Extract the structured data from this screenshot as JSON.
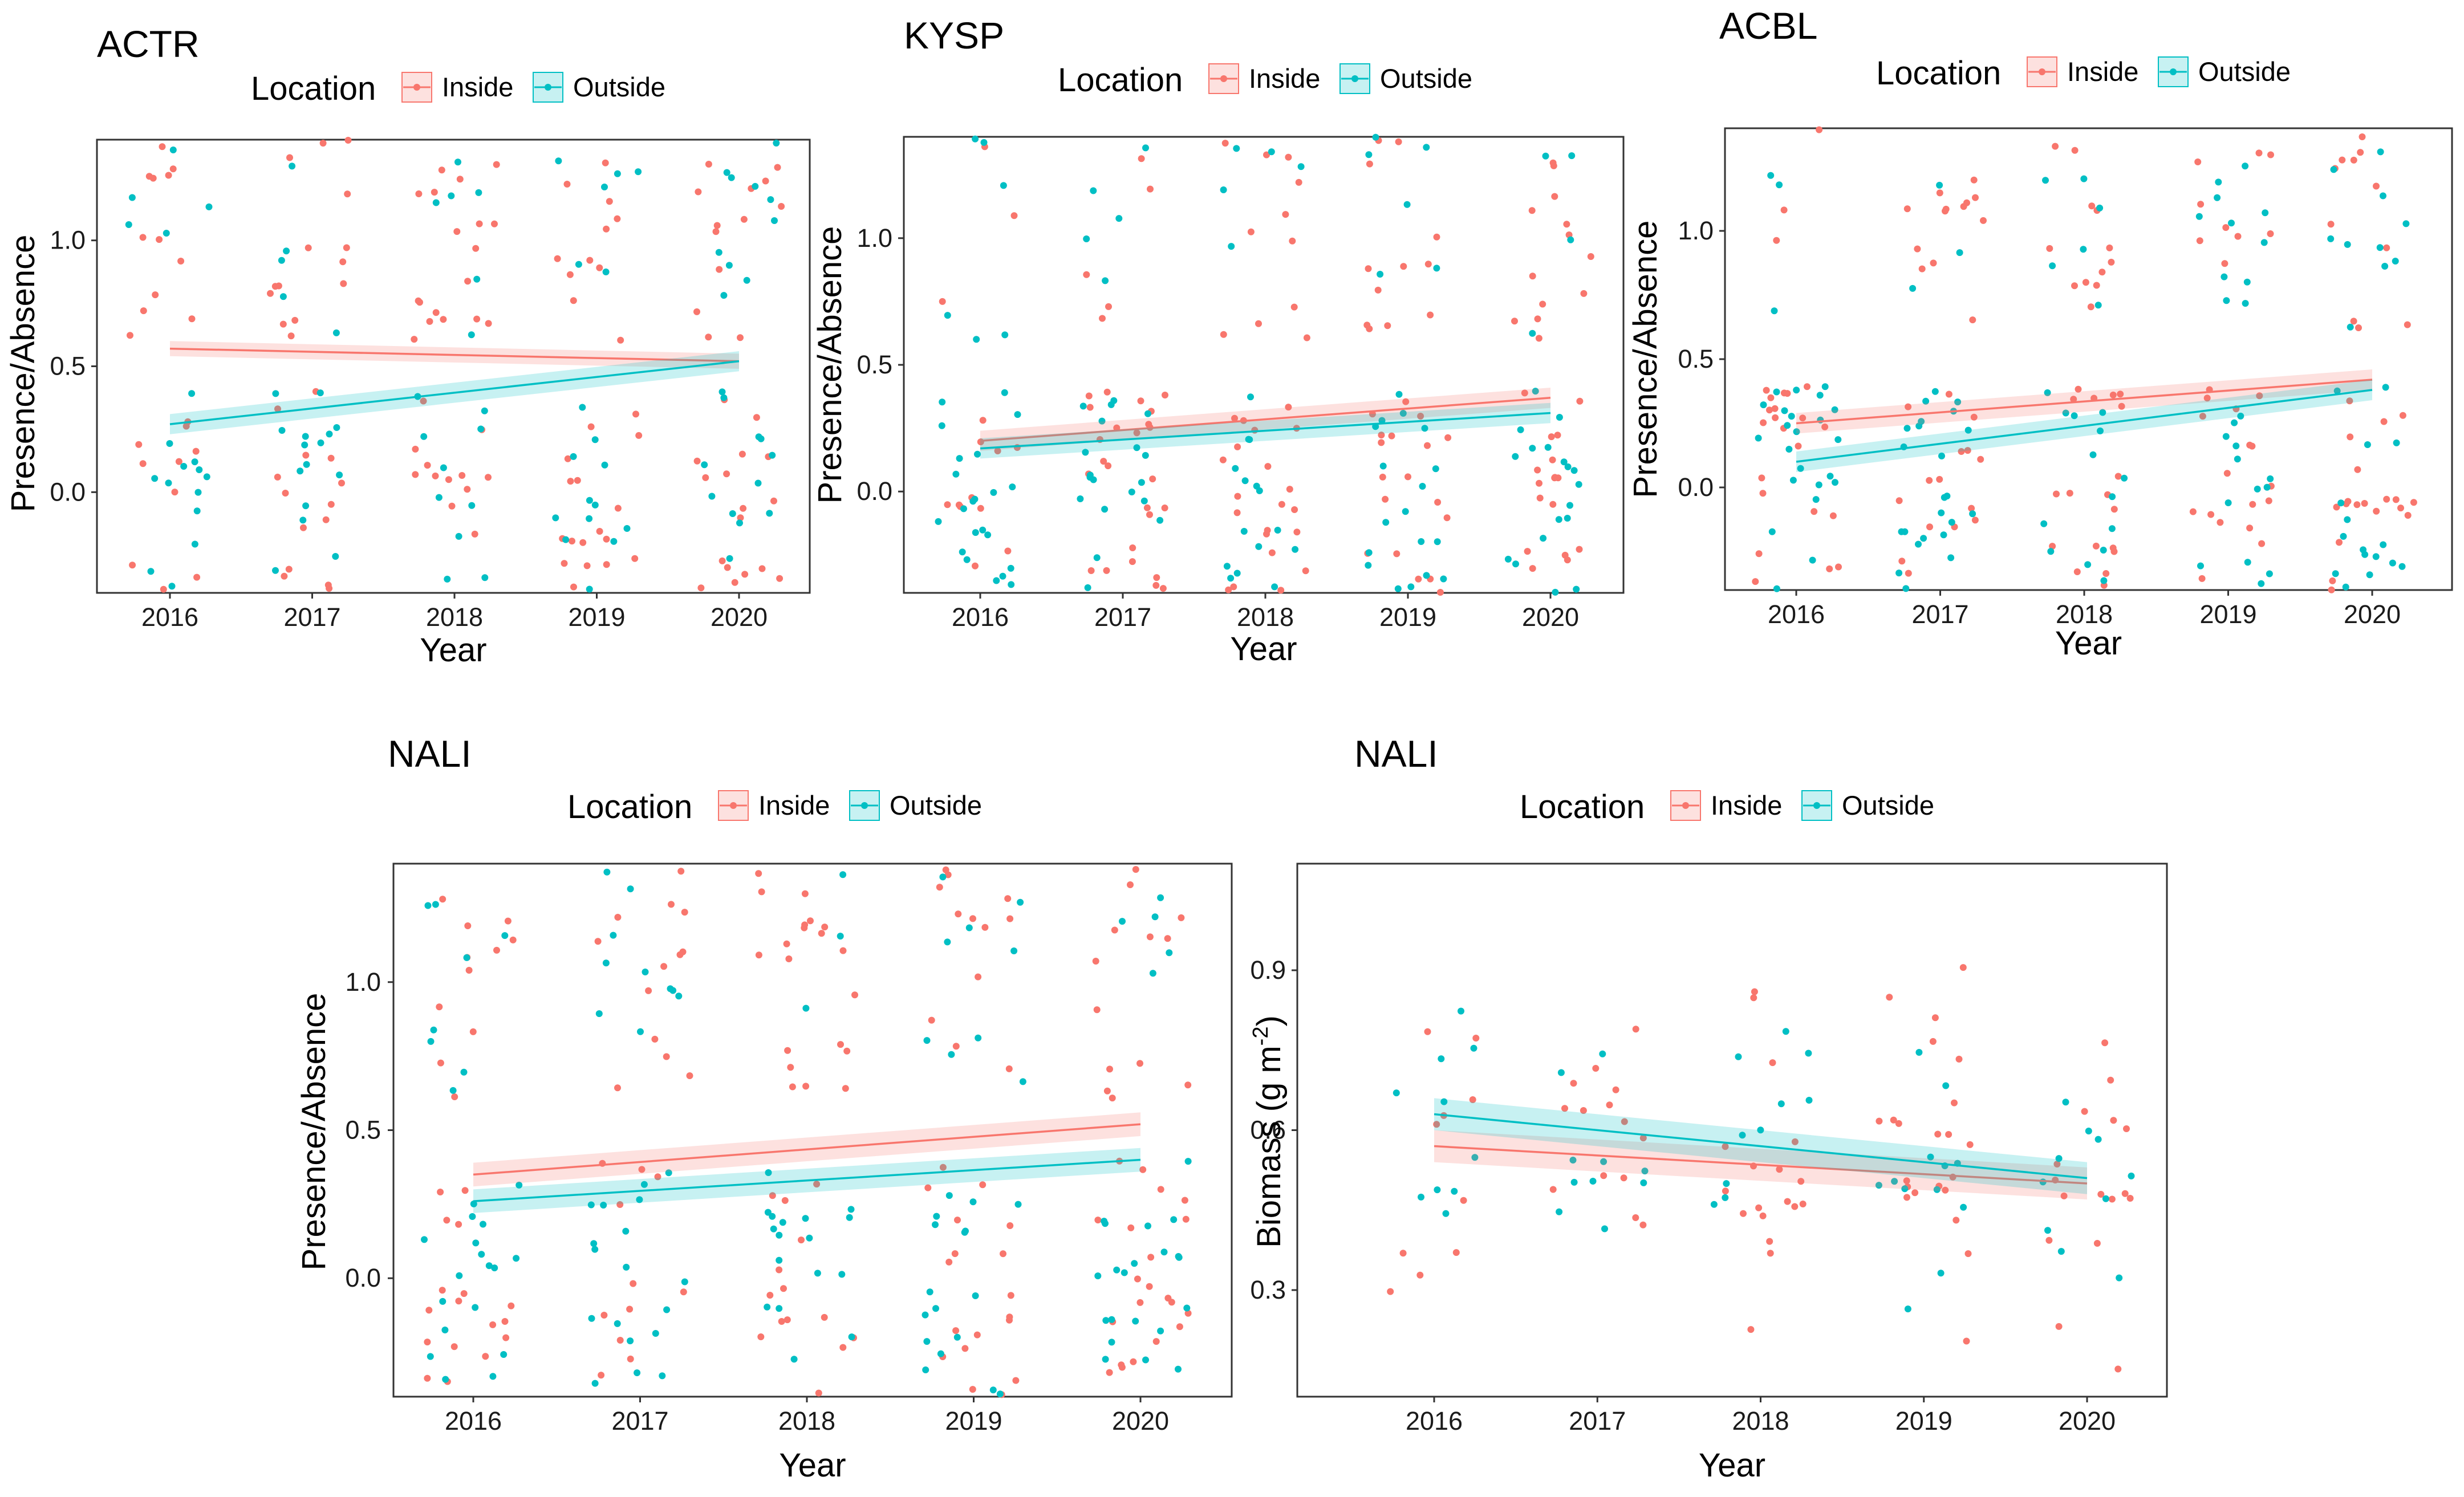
{
  "colors": {
    "inside": "#F8766D",
    "outside": "#00BFC4"
  },
  "legend": {
    "title": "Location",
    "items": [
      "Inside",
      "Outside"
    ]
  },
  "chart_data": [
    {
      "type": "scatter",
      "title": "ACTR",
      "xlabel": "Year",
      "ylabel": "Presence/Absence",
      "ylim": [
        -0.4,
        1.4
      ],
      "yticks": [
        0.0,
        0.5,
        1.0
      ],
      "ytick_labels": [
        "0.0",
        "0.5",
        "1.0"
      ],
      "x": [
        2016,
        2017,
        2018,
        2019,
        2020
      ],
      "xtick_labels": [
        "2016",
        "2017",
        "2018",
        "2019",
        "2020"
      ],
      "jitter": {
        "x": 0.3,
        "y": 0.4
      },
      "points_per_year": {
        "Inside": [
          22,
          28,
          30,
          28,
          30
        ],
        "Outside": [
          18,
          20,
          16,
          18,
          22
        ]
      },
      "series": [
        {
          "name": "Inside",
          "start": 0.57,
          "end": 0.52,
          "ci": 0.03
        },
        {
          "name": "Outside",
          "start": 0.27,
          "end": 0.52,
          "ci": 0.04
        }
      ]
    },
    {
      "type": "scatter",
      "title": "KYSP",
      "xlabel": "Year",
      "ylabel": "Presence/Absence",
      "ylim": [
        -0.4,
        1.4
      ],
      "yticks": [
        0.0,
        0.5,
        1.0
      ],
      "ytick_labels": [
        "0.0",
        "0.5",
        "1.0"
      ],
      "x": [
        2016,
        2017,
        2018,
        2019,
        2020
      ],
      "xtick_labels": [
        "2016",
        "2017",
        "2018",
        "2019",
        "2020"
      ],
      "jitter": {
        "x": 0.3,
        "y": 0.4
      },
      "points_per_year": {
        "Inside": [
          14,
          30,
          32,
          30,
          30
        ],
        "Outside": [
          28,
          24,
          20,
          24,
          22
        ]
      },
      "series": [
        {
          "name": "Inside",
          "start": 0.2,
          "end": 0.37,
          "ci": 0.04
        },
        {
          "name": "Outside",
          "start": 0.17,
          "end": 0.31,
          "ci": 0.04
        }
      ]
    },
    {
      "type": "scatter",
      "title": "ACBL",
      "xlabel": "Year",
      "ylabel": "Presence/Absence",
      "ylim": [
        -0.4,
        1.4
      ],
      "yticks": [
        0.0,
        0.5,
        1.0
      ],
      "ytick_labels": [
        "0.0",
        "0.5",
        "1.0"
      ],
      "x": [
        2016,
        2017,
        2018,
        2019,
        2020
      ],
      "xtick_labels": [
        "2016",
        "2017",
        "2018",
        "2019",
        "2020"
      ],
      "jitter": {
        "x": 0.3,
        "y": 0.4
      },
      "points_per_year": {
        "Inside": [
          24,
          28,
          30,
          26,
          30
        ],
        "Outside": [
          26,
          26,
          20,
          24,
          26
        ]
      },
      "series": [
        {
          "name": "Inside",
          "start": 0.25,
          "end": 0.42,
          "ci": 0.04
        },
        {
          "name": "Outside",
          "start": 0.1,
          "end": 0.38,
          "ci": 0.04
        }
      ]
    },
    {
      "type": "scatter",
      "title": "NALI",
      "xlabel": "Year",
      "ylabel": "Presence/Absence",
      "ylim": [
        -0.4,
        1.4
      ],
      "yticks": [
        0.0,
        0.5,
        1.0
      ],
      "ytick_labels": [
        "0.0",
        "0.5",
        "1.0"
      ],
      "x": [
        2016,
        2017,
        2018,
        2019,
        2020
      ],
      "xtick_labels": [
        "2016",
        "2017",
        "2018",
        "2019",
        "2020"
      ],
      "jitter": {
        "x": 0.3,
        "y": 0.4
      },
      "points_per_year": {
        "Inside": [
          28,
          24,
          34,
          30,
          34
        ],
        "Outside": [
          26,
          28,
          20,
          26,
          26
        ]
      },
      "series": [
        {
          "name": "Inside",
          "start": 0.35,
          "end": 0.52,
          "ci": 0.04
        },
        {
          "name": "Outside",
          "start": 0.26,
          "end": 0.4,
          "ci": 0.04
        }
      ]
    },
    {
      "type": "scatter",
      "title": "NALI",
      "xlabel": "Year",
      "ylabel": "Biomass (g m",
      "ylabel_superscript": "-2",
      "ylabel_suffix": ")",
      "ylim": [
        0.1,
        1.1
      ],
      "yticks": [
        0.3,
        0.6,
        0.9
      ],
      "ytick_labels": [
        "0.3",
        "0.6",
        "0.9"
      ],
      "x": [
        2016,
        2017,
        2018,
        2019,
        2020
      ],
      "xtick_labels": [
        "2016",
        "2017",
        "2018",
        "2019",
        "2020"
      ],
      "jitter": {
        "x": 0.3,
        "y": 0
      },
      "points_per_year": {
        "Inside": [
          10,
          14,
          18,
          22,
          16
        ],
        "Outside": [
          10,
          10,
          10,
          12,
          10
        ]
      },
      "series": [
        {
          "name": "Inside",
          "start": 0.57,
          "end": 0.5,
          "ci": 0.03
        },
        {
          "name": "Outside",
          "start": 0.63,
          "end": 0.51,
          "ci": 0.03
        }
      ]
    }
  ]
}
